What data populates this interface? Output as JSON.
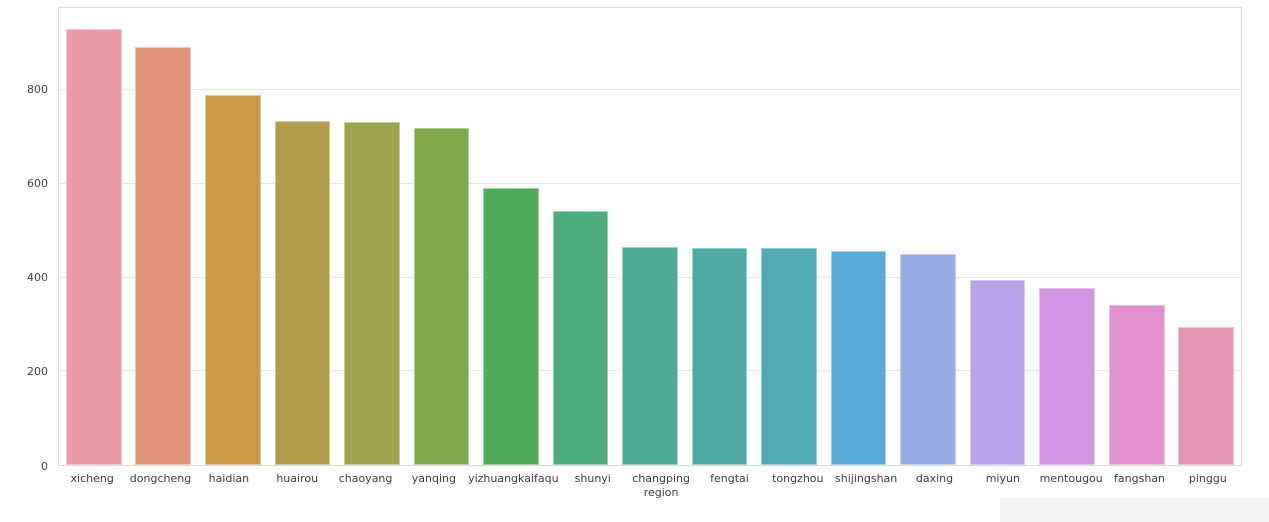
{
  "chart_data": {
    "type": "bar",
    "title": "",
    "xlabel": "",
    "ylabel": "",
    "categories": [
      "xicheng",
      "dongcheng",
      "haidian",
      "huairou",
      "chaoyang",
      "yanqing",
      "yizhuangkaifaqu",
      "shunyi",
      "changping\nregion",
      "fengtai",
      "tongzhou",
      "shijingshan",
      "daxing",
      "miyun",
      "mentougou",
      "fangshan",
      "pinggu"
    ],
    "values": [
      930,
      892,
      790,
      735,
      731,
      719,
      592,
      541,
      466,
      464,
      463,
      456,
      450,
      394,
      378,
      341,
      295
    ],
    "bar_colors": [
      "#ea9aa5",
      "#e29677",
      "#cc9b4a",
      "#b19d4b",
      "#9da24b",
      "#80a94c",
      "#4fad58",
      "#4ead7c",
      "#4dab93",
      "#4daaa4",
      "#52a9b6",
      "#5aaad7",
      "#97abe3",
      "#b8a3e9",
      "#d595e5",
      "#e290cf",
      "#e793b3"
    ],
    "ylim": [
      0,
      975
    ],
    "yticks": [
      0,
      200,
      400,
      600,
      800
    ],
    "grid": "horizontal-only",
    "legend": null
  },
  "style_colors": {
    "plot_background": "#ffffff",
    "figure_background": "#ffffff",
    "grid_color": "#e8e8e8",
    "spine_color": "#dcdcdc",
    "ytick_label_color": "#444444",
    "xtick_label_color": "#3d3d3d",
    "page_corner_background": "#f2f3f4"
  }
}
